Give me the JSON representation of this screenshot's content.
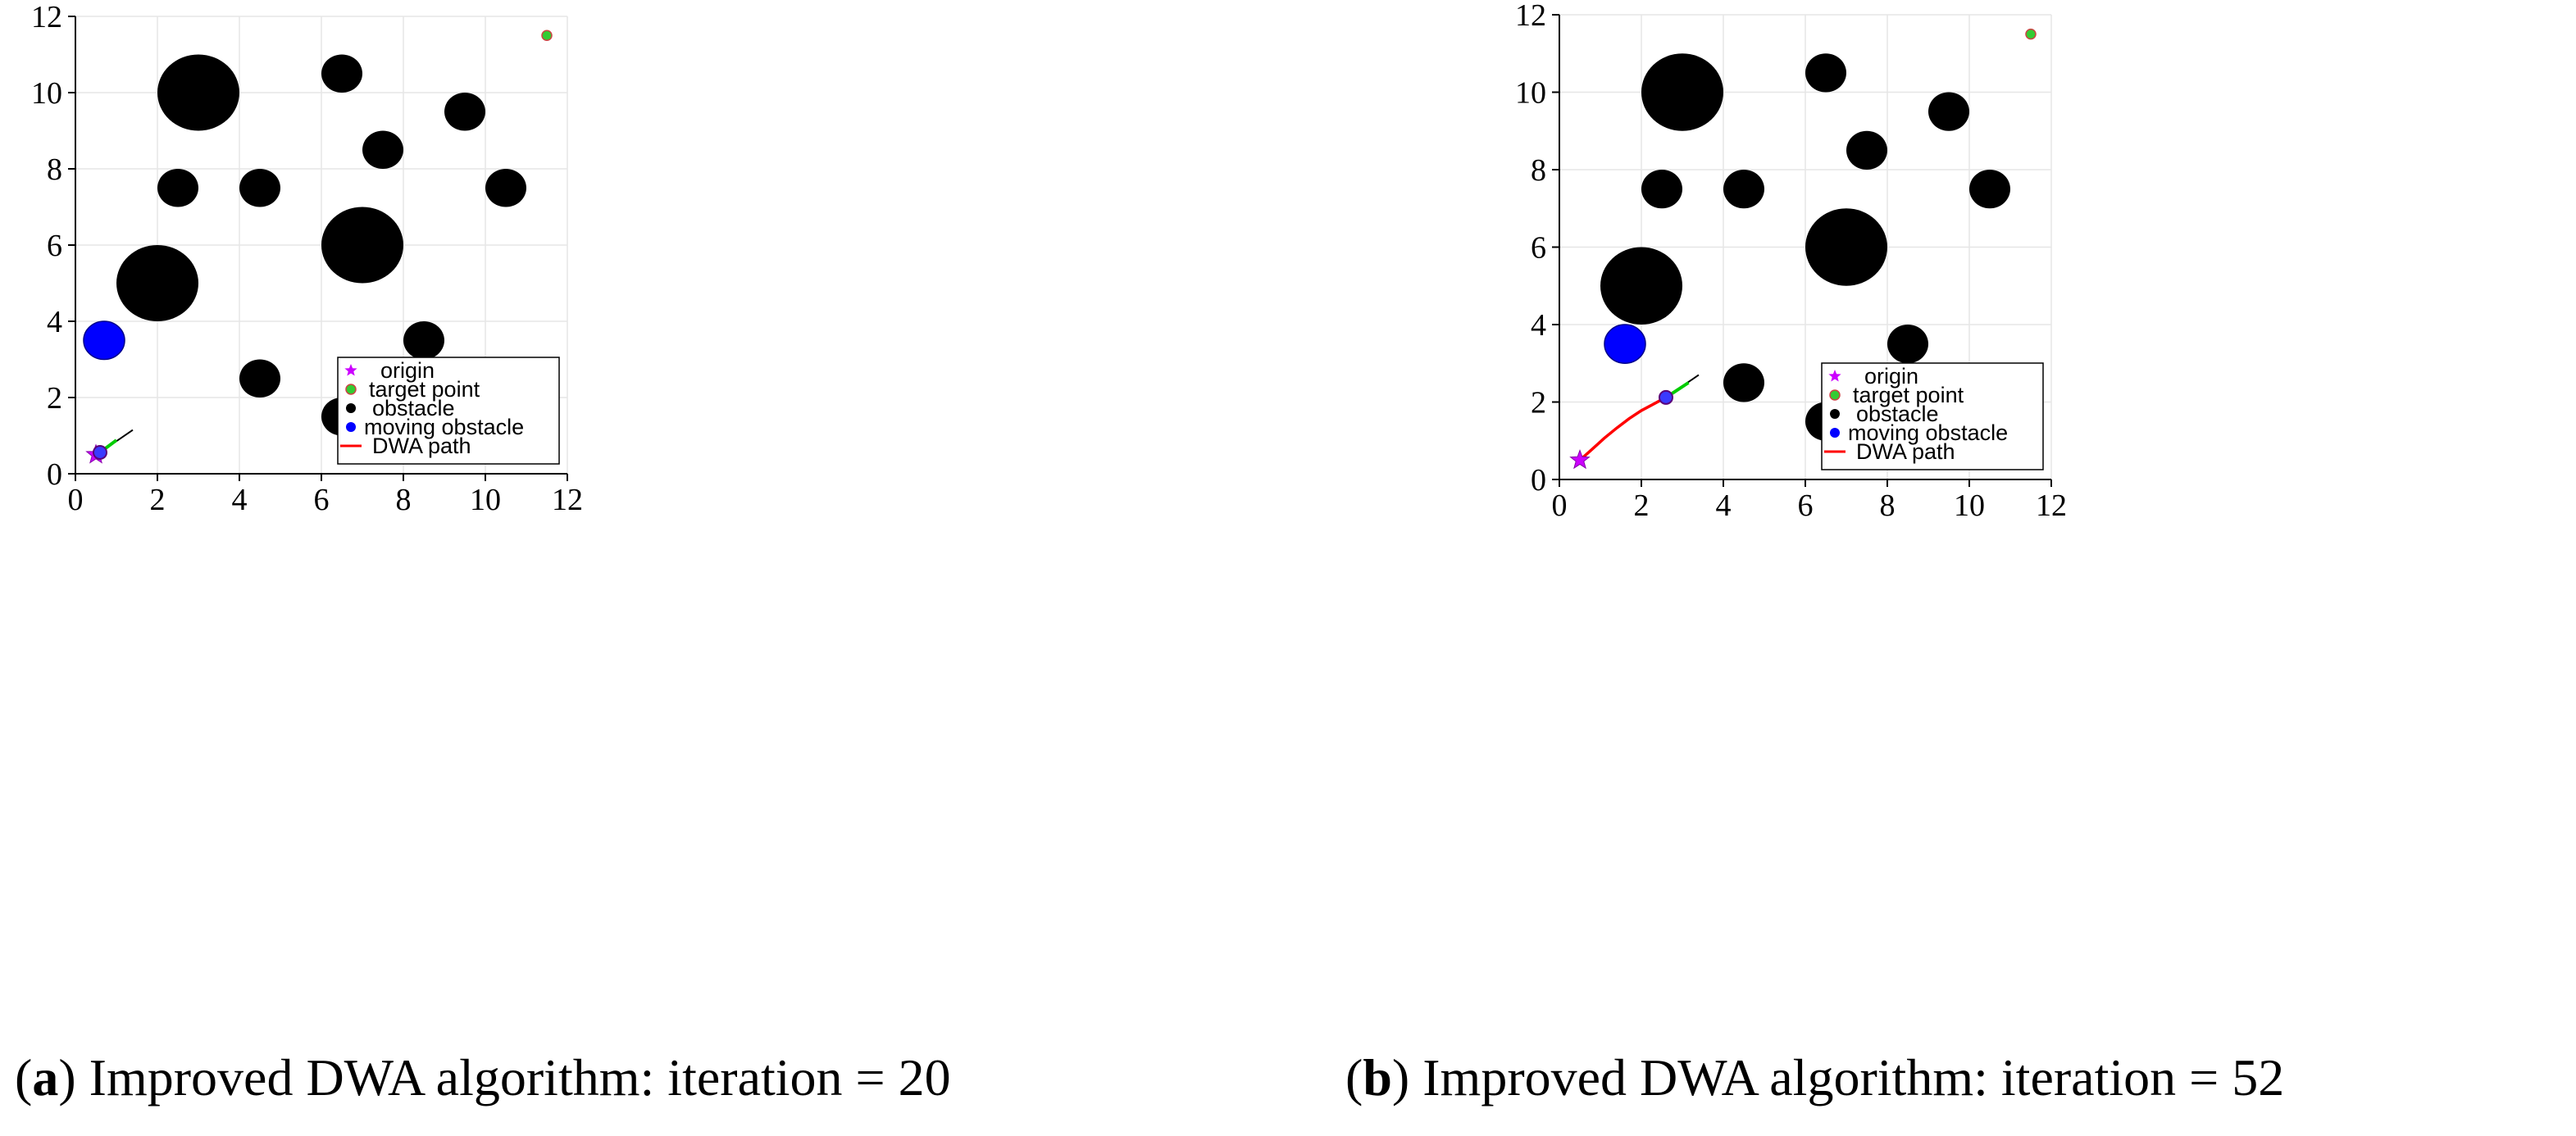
{
  "chart_data": [
    {
      "type": "scatter",
      "panel": "a",
      "title": "",
      "caption_label": "a",
      "caption_text": "Improved DWA algorithm: iteration = 20",
      "xlim": [
        0,
        12
      ],
      "ylim": [
        0,
        12
      ],
      "xticks": [
        0,
        2,
        4,
        6,
        8,
        10,
        12
      ],
      "yticks": [
        0,
        2,
        4,
        6,
        8,
        10,
        12
      ],
      "grid": true,
      "legend_position": "bottom-right",
      "legend": [
        "origin",
        "target point",
        "obstacle",
        "moving obstacle",
        "DWA path"
      ],
      "origin": {
        "x": 0.5,
        "y": 0.5
      },
      "target": {
        "x": 11.5,
        "y": 11.5
      },
      "obstacles": [
        {
          "x": 3,
          "y": 10,
          "r": 1.0
        },
        {
          "x": 6.5,
          "y": 10.5,
          "r": 0.5
        },
        {
          "x": 9.5,
          "y": 9.5,
          "r": 0.5
        },
        {
          "x": 7.5,
          "y": 8.5,
          "r": 0.5
        },
        {
          "x": 2.5,
          "y": 7.5,
          "r": 0.5
        },
        {
          "x": 4.5,
          "y": 7.5,
          "r": 0.5
        },
        {
          "x": 10.5,
          "y": 7.5,
          "r": 0.5
        },
        {
          "x": 7,
          "y": 6,
          "r": 1.0
        },
        {
          "x": 2,
          "y": 5,
          "r": 1.0
        },
        {
          "x": 8.5,
          "y": 3.5,
          "r": 0.5
        },
        {
          "x": 4.5,
          "y": 2.5,
          "r": 0.5
        },
        {
          "x": 6.5,
          "y": 1.5,
          "r": 0.5
        }
      ],
      "moving_obstacle": {
        "x": 0.7,
        "y": 3.5,
        "r": 0.5
      },
      "robot": {
        "x": 0.6,
        "y": 0.56
      },
      "path": [
        [
          0.5,
          0.5
        ],
        [
          0.56,
          0.53
        ],
        [
          0.6,
          0.56
        ]
      ],
      "predicted_trajectory": [
        [
          0.6,
          0.56
        ],
        [
          1.4,
          1.15
        ]
      ],
      "heading_segment": [
        [
          0.7,
          0.64
        ],
        [
          1.0,
          0.88
        ]
      ]
    },
    {
      "type": "scatter",
      "panel": "b",
      "title": "",
      "caption_label": "b",
      "caption_text": "Improved DWA algorithm: iteration = 52",
      "xlim": [
        0,
        12
      ],
      "ylim": [
        0,
        12
      ],
      "xticks": [
        0,
        2,
        4,
        6,
        8,
        10,
        12
      ],
      "yticks": [
        0,
        2,
        4,
        6,
        8,
        10,
        12
      ],
      "grid": true,
      "legend_position": "bottom-right",
      "legend": [
        "origin",
        "target point",
        "obstacle",
        "moving obstacle",
        "DWA path"
      ],
      "origin": {
        "x": 0.5,
        "y": 0.5
      },
      "target": {
        "x": 11.5,
        "y": 11.5
      },
      "obstacles": [
        {
          "x": 3,
          "y": 10,
          "r": 1.0
        },
        {
          "x": 6.5,
          "y": 10.5,
          "r": 0.5
        },
        {
          "x": 9.5,
          "y": 9.5,
          "r": 0.5
        },
        {
          "x": 7.5,
          "y": 8.5,
          "r": 0.5
        },
        {
          "x": 2.5,
          "y": 7.5,
          "r": 0.5
        },
        {
          "x": 4.5,
          "y": 7.5,
          "r": 0.5
        },
        {
          "x": 10.5,
          "y": 7.5,
          "r": 0.5
        },
        {
          "x": 7,
          "y": 6,
          "r": 1.0
        },
        {
          "x": 2,
          "y": 5,
          "r": 1.0
        },
        {
          "x": 8.5,
          "y": 3.5,
          "r": 0.5
        },
        {
          "x": 4.5,
          "y": 2.5,
          "r": 0.5
        },
        {
          "x": 6.5,
          "y": 1.5,
          "r": 0.5
        }
      ],
      "moving_obstacle": {
        "x": 1.6,
        "y": 3.5,
        "r": 0.5
      },
      "robot": {
        "x": 2.6,
        "y": 2.12
      },
      "path": [
        [
          0.5,
          0.5
        ],
        [
          0.8,
          0.78
        ],
        [
          1.1,
          1.07
        ],
        [
          1.4,
          1.33
        ],
        [
          1.7,
          1.57
        ],
        [
          2.0,
          1.78
        ],
        [
          2.3,
          1.95
        ],
        [
          2.6,
          2.12
        ]
      ],
      "predicted_trajectory": [
        [
          2.6,
          2.12
        ],
        [
          3.4,
          2.7
        ]
      ],
      "heading_segment": [
        [
          2.75,
          2.22
        ],
        [
          3.15,
          2.5
        ]
      ]
    }
  ]
}
